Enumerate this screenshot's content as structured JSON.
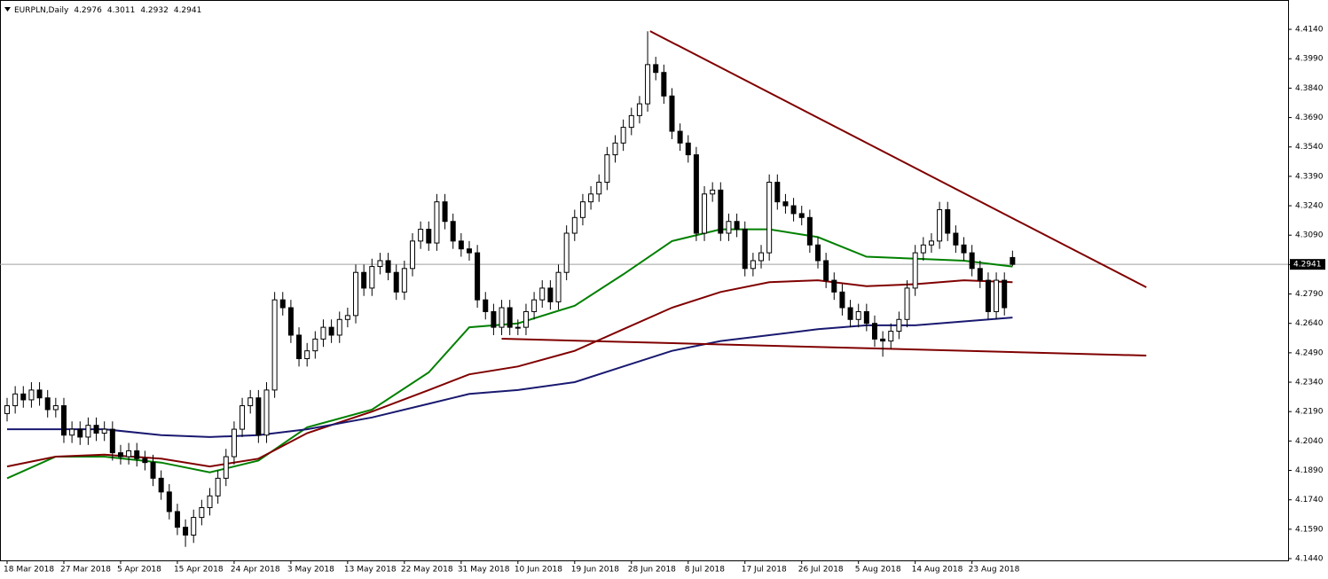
{
  "chart_data": {
    "type": "candlestick",
    "symbol": "EURPLN,Daily",
    "categories": [
      "18 Mar 2018",
      null,
      null,
      null,
      null,
      null,
      null,
      "27 Mar 2018",
      null,
      null,
      null,
      null,
      null,
      null,
      "5 Apr 2018",
      null,
      null,
      null,
      null,
      null,
      null,
      "15 Apr 2018",
      null,
      null,
      null,
      null,
      null,
      null,
      "24 Apr 2018",
      null,
      null,
      null,
      null,
      null,
      null,
      "3 May 2018",
      null,
      null,
      null,
      null,
      null,
      null,
      "13 May 2018",
      null,
      null,
      null,
      null,
      null,
      null,
      "22 May 2018",
      null,
      null,
      null,
      null,
      null,
      null,
      "31 May 2018",
      null,
      null,
      null,
      null,
      null,
      null,
      "10 Jun 2018",
      null,
      null,
      null,
      null,
      null,
      null,
      "19 Jun 2018",
      null,
      null,
      null,
      null,
      null,
      null,
      "28 Jun 2018",
      null,
      null,
      null,
      null,
      null,
      null,
      "8 Jul 2018",
      null,
      null,
      null,
      null,
      null,
      null,
      "17 Jul 2018",
      null,
      null,
      null,
      null,
      null,
      null,
      "26 Jul 2018",
      null,
      null,
      null,
      null,
      null,
      null,
      "5 Aug 2018",
      null,
      null,
      null,
      null,
      null,
      null,
      "14 Aug 2018",
      null,
      null,
      null,
      null,
      null,
      null,
      "23 Aug 2018",
      null,
      null,
      null,
      null,
      null
    ],
    "open": [
      4.218,
      4.222,
      4.228,
      4.225,
      4.23,
      4.226,
      4.22,
      4.222,
      4.207,
      4.21,
      4.206,
      4.212,
      4.208,
      4.21,
      4.198,
      4.196,
      4.199,
      4.195,
      4.193,
      4.185,
      4.178,
      4.168,
      4.16,
      4.156,
      4.165,
      4.17,
      4.176,
      4.185,
      4.196,
      4.21,
      4.222,
      4.226,
      4.207,
      4.23,
      4.276,
      4.272,
      4.258,
      4.246,
      4.25,
      4.256,
      4.262,
      4.258,
      4.266,
      4.268,
      4.29,
      4.282,
      4.293,
      4.296,
      4.29,
      4.28,
      4.292,
      4.306,
      4.312,
      4.305,
      4.326,
      4.316,
      4.306,
      4.302,
      4.3,
      4.276,
      4.27,
      4.262,
      4.272,
      4.262,
      4.262,
      4.27,
      4.276,
      4.282,
      4.275,
      4.29,
      4.31,
      4.318,
      4.326,
      4.33,
      4.336,
      4.35,
      4.356,
      4.364,
      4.37,
      4.376,
      4.396,
      4.392,
      4.38,
      4.362,
      4.356,
      4.35,
      4.31,
      4.33,
      4.332,
      4.31,
      4.316,
      4.312,
      4.292,
      4.296,
      4.3,
      4.336,
      4.326,
      4.324,
      4.32,
      4.318,
      4.304,
      4.296,
      4.286,
      4.28,
      4.272,
      4.266,
      4.27,
      4.264,
      4.256,
      4.255,
      4.26,
      4.266,
      4.282,
      4.3,
      4.304,
      4.306,
      4.322,
      4.31,
      4.304,
      4.3,
      4.292,
      4.286,
      4.27,
      4.286,
      4.2976
    ],
    "high": [
      4.226,
      4.232,
      4.232,
      4.234,
      4.234,
      4.23,
      4.226,
      4.226,
      4.214,
      4.214,
      4.216,
      4.216,
      4.214,
      4.214,
      4.202,
      4.203,
      4.203,
      4.199,
      4.197,
      4.189,
      4.182,
      4.172,
      4.164,
      4.169,
      4.174,
      4.18,
      4.189,
      4.2,
      4.214,
      4.226,
      4.23,
      4.23,
      4.234,
      4.28,
      4.28,
      4.276,
      4.262,
      4.254,
      4.26,
      4.266,
      4.266,
      4.27,
      4.272,
      4.294,
      4.294,
      4.297,
      4.3,
      4.3,
      4.294,
      4.296,
      4.31,
      4.316,
      4.316,
      4.33,
      4.33,
      4.32,
      4.31,
      4.306,
      4.304,
      4.28,
      4.274,
      4.276,
      4.276,
      4.266,
      4.274,
      4.28,
      4.286,
      4.286,
      4.294,
      4.314,
      4.322,
      4.33,
      4.334,
      4.34,
      4.354,
      4.36,
      4.368,
      4.374,
      4.38,
      4.413,
      4.4,
      4.396,
      4.384,
      4.366,
      4.36,
      4.354,
      4.334,
      4.336,
      4.336,
      4.32,
      4.32,
      4.316,
      4.3,
      4.304,
      4.34,
      4.34,
      4.33,
      4.328,
      4.324,
      4.322,
      4.308,
      4.3,
      4.29,
      4.284,
      4.276,
      4.274,
      4.274,
      4.268,
      4.26,
      4.264,
      4.27,
      4.286,
      4.304,
      4.308,
      4.31,
      4.326,
      4.326,
      4.314,
      4.308,
      4.304,
      4.296,
      4.29,
      4.29,
      4.29,
      4.3011
    ],
    "low": [
      4.214,
      4.218,
      4.221,
      4.221,
      4.222,
      4.216,
      4.216,
      4.203,
      4.203,
      4.202,
      4.202,
      4.204,
      4.204,
      4.194,
      4.192,
      4.192,
      4.191,
      4.189,
      4.181,
      4.174,
      4.164,
      4.156,
      4.15,
      4.152,
      4.161,
      4.166,
      4.172,
      4.181,
      4.192,
      4.206,
      4.218,
      4.203,
      4.203,
      4.226,
      4.268,
      4.254,
      4.242,
      4.242,
      4.246,
      4.252,
      4.254,
      4.254,
      4.262,
      4.264,
      4.278,
      4.278,
      4.289,
      4.286,
      4.276,
      4.276,
      4.288,
      4.302,
      4.301,
      4.301,
      4.312,
      4.302,
      4.298,
      4.296,
      4.272,
      4.266,
      4.258,
      4.258,
      4.258,
      4.258,
      4.258,
      4.266,
      4.272,
      4.271,
      4.271,
      4.286,
      4.306,
      4.314,
      4.322,
      4.326,
      4.332,
      4.346,
      4.352,
      4.36,
      4.366,
      4.372,
      4.388,
      4.376,
      4.358,
      4.352,
      4.346,
      4.306,
      4.306,
      4.326,
      4.306,
      4.306,
      4.308,
      4.288,
      4.288,
      4.292,
      4.296,
      4.322,
      4.32,
      4.316,
      4.314,
      4.3,
      4.292,
      4.282,
      4.276,
      4.268,
      4.262,
      4.262,
      4.26,
      4.252,
      4.247,
      4.251,
      4.256,
      4.262,
      4.278,
      4.296,
      4.3,
      4.302,
      4.306,
      4.3,
      4.296,
      4.288,
      4.282,
      4.266,
      4.266,
      4.268,
      4.2932
    ],
    "close": [
      4.222,
      4.228,
      4.225,
      4.23,
      4.226,
      4.22,
      4.222,
      4.207,
      4.21,
      4.206,
      4.212,
      4.208,
      4.21,
      4.198,
      4.196,
      4.199,
      4.195,
      4.193,
      4.185,
      4.178,
      4.168,
      4.16,
      4.156,
      4.165,
      4.17,
      4.176,
      4.185,
      4.196,
      4.21,
      4.222,
      4.226,
      4.207,
      4.23,
      4.276,
      4.272,
      4.258,
      4.246,
      4.25,
      4.256,
      4.262,
      4.258,
      4.266,
      4.268,
      4.29,
      4.282,
      4.293,
      4.296,
      4.29,
      4.28,
      4.292,
      4.306,
      4.312,
      4.305,
      4.326,
      4.316,
      4.306,
      4.302,
      4.3,
      4.276,
      4.27,
      4.262,
      4.272,
      4.262,
      4.262,
      4.27,
      4.276,
      4.282,
      4.275,
      4.29,
      4.31,
      4.318,
      4.326,
      4.33,
      4.336,
      4.35,
      4.356,
      4.364,
      4.37,
      4.376,
      4.396,
      4.392,
      4.38,
      4.362,
      4.356,
      4.35,
      4.31,
      4.33,
      4.332,
      4.31,
      4.316,
      4.312,
      4.292,
      4.296,
      4.3,
      4.336,
      4.326,
      4.324,
      4.32,
      4.318,
      4.304,
      4.296,
      4.286,
      4.28,
      4.272,
      4.266,
      4.27,
      4.264,
      4.256,
      4.255,
      4.26,
      4.266,
      4.282,
      4.3,
      4.304,
      4.306,
      4.322,
      4.31,
      4.304,
      4.3,
      4.292,
      4.286,
      4.27,
      4.286,
      4.272,
      4.2941
    ],
    "lines": [
      {
        "color": "#008000",
        "x": [
          0,
          6,
          12,
          19,
          25,
          31,
          37,
          45,
          52,
          57,
          63,
          70,
          76,
          82,
          88,
          94,
          100,
          106,
          112,
          118,
          124
        ],
        "values": [
          4.185,
          4.196,
          4.196,
          4.193,
          4.188,
          4.194,
          4.211,
          4.22,
          4.239,
          4.262,
          4.264,
          4.273,
          4.289,
          4.306,
          4.312,
          4.312,
          4.308,
          4.298,
          4.297,
          4.296,
          4.293
        ]
      },
      {
        "color": "#800000",
        "x": [
          0,
          6,
          12,
          19,
          25,
          31,
          37,
          45,
          52,
          57,
          63,
          70,
          76,
          82,
          88,
          94,
          100,
          106,
          112,
          118,
          124
        ],
        "values": [
          4.191,
          4.196,
          4.197,
          4.195,
          4.191,
          4.195,
          4.208,
          4.219,
          4.23,
          4.238,
          4.242,
          4.25,
          4.261,
          4.272,
          4.28,
          4.285,
          4.286,
          4.283,
          4.284,
          4.286,
          4.285
        ]
      },
      {
        "color": "#191970",
        "x": [
          0,
          6,
          12,
          19,
          25,
          31,
          37,
          45,
          52,
          57,
          63,
          70,
          76,
          82,
          88,
          94,
          100,
          106,
          112,
          118,
          124
        ],
        "values": [
          4.21,
          4.21,
          4.21,
          4.207,
          4.206,
          4.207,
          4.21,
          4.216,
          4.223,
          4.228,
          4.23,
          4.234,
          4.242,
          4.25,
          4.255,
          4.258,
          4.261,
          4.263,
          4.263,
          4.265,
          4.267
        ]
      }
    ],
    "trendlines": [
      {
        "color": "#800000",
        "x": [
          79.3,
          140.5
        ],
        "values": [
          4.4131,
          4.2824
        ]
      },
      {
        "color": "#800000",
        "x": [
          61,
          140.5
        ],
        "values": [
          4.2562,
          4.2476
        ]
      }
    ],
    "ylim": [
      4.1431,
      4.4267
    ],
    "yticks": [
      {
        "value": 4.144,
        "label": "4.1440"
      },
      {
        "value": 4.159,
        "label": "4.1590"
      },
      {
        "value": 4.174,
        "label": "4.1740"
      },
      {
        "value": 4.189,
        "label": "4.1890"
      },
      {
        "value": 4.204,
        "label": "4.2040"
      },
      {
        "value": 4.219,
        "label": "4.2190"
      },
      {
        "value": 4.234,
        "label": "4.2340"
      },
      {
        "value": 4.249,
        "label": "4.2490"
      },
      {
        "value": 4.264,
        "label": "4.2640"
      },
      {
        "value": 4.279,
        "label": "4.2790"
      },
      {
        "value": 4.294,
        "label": "4.2940"
      },
      {
        "value": 4.309,
        "label": "4.3090"
      },
      {
        "value": 4.324,
        "label": "4.3240"
      },
      {
        "value": 4.339,
        "label": "4.3390"
      },
      {
        "value": 4.354,
        "label": "4.3540"
      },
      {
        "value": 4.369,
        "label": "4.3690"
      },
      {
        "value": 4.384,
        "label": "4.3840"
      },
      {
        "value": 4.399,
        "label": "4.3990"
      },
      {
        "value": 4.414,
        "label": "4.4140"
      }
    ]
  }
}
